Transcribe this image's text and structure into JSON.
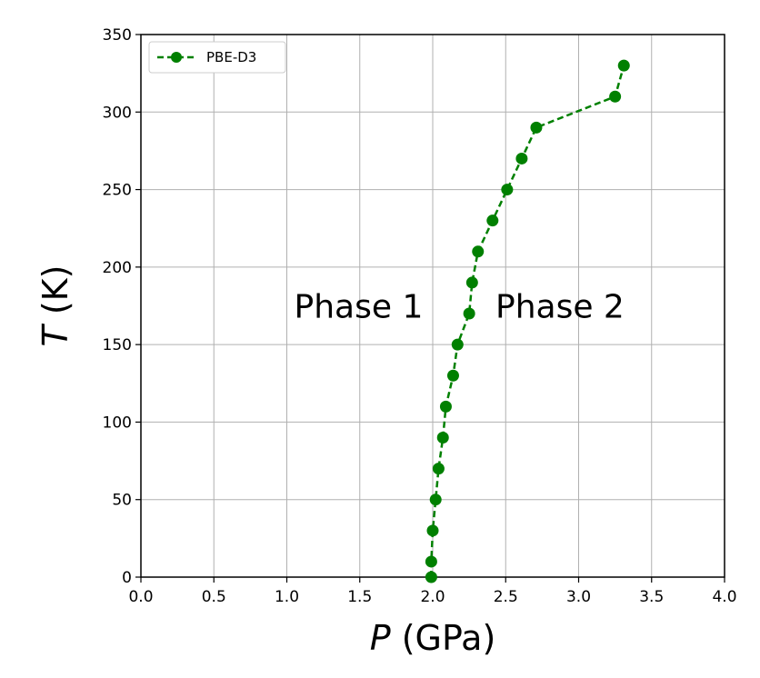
{
  "chart_data": {
    "type": "line",
    "title": "",
    "xlabel_symbol": "P",
    "xlabel_unit": " (GPa)",
    "ylabel_symbol": "T",
    "ylabel_unit": " (K)",
    "xlim": [
      0.0,
      4.0
    ],
    "ylim": [
      0,
      350
    ],
    "xticks": [
      0.0,
      0.5,
      1.0,
      1.5,
      2.0,
      2.5,
      3.0,
      3.5,
      4.0
    ],
    "xtick_labels": [
      "0.0",
      "0.5",
      "1.0",
      "1.5",
      "2.0",
      "2.5",
      "3.0",
      "3.5",
      "4.0"
    ],
    "yticks": [
      0,
      50,
      100,
      150,
      200,
      250,
      300,
      350
    ],
    "ytick_labels": [
      "0",
      "50",
      "100",
      "150",
      "200",
      "250",
      "300",
      "350"
    ],
    "grid": true,
    "legend_position": "top-left",
    "series": [
      {
        "name": "PBE-D3",
        "color": "#008000",
        "line_style": "dashed",
        "marker": "circle",
        "x": [
          1.99,
          1.99,
          2.0,
          2.02,
          2.04,
          2.07,
          2.09,
          2.14,
          2.17,
          2.25,
          2.27,
          2.31,
          2.41,
          2.51,
          2.61,
          2.71,
          3.25,
          3.31
        ],
        "y": [
          0,
          10,
          30,
          50,
          70,
          90,
          110,
          130,
          150,
          170,
          190,
          210,
          230,
          250,
          270,
          290,
          310,
          330
        ]
      }
    ],
    "annotations": [
      {
        "text": "Phase 1",
        "x": 1.05,
        "y": 175
      },
      {
        "text": "Phase 2",
        "x": 2.43,
        "y": 175
      }
    ]
  }
}
